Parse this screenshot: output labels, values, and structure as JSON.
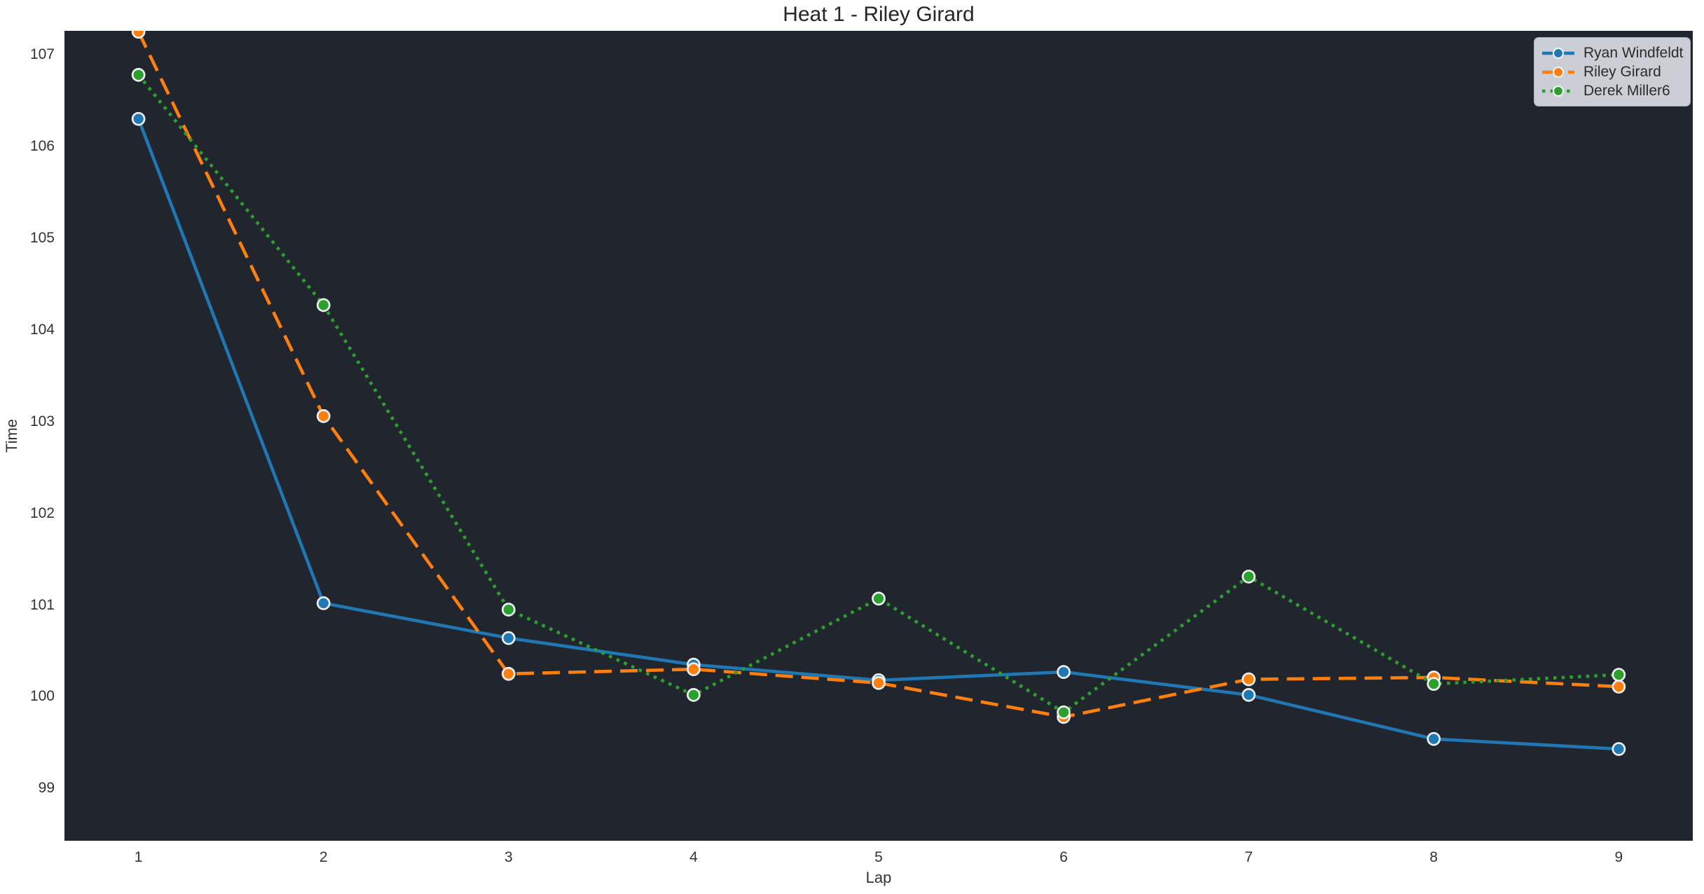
{
  "title": "Heat 1 - Riley Girard",
  "chart_data": {
    "type": "line",
    "title": "Heat 1 - Riley Girard",
    "xlabel": "Lap",
    "ylabel": "Time",
    "x": [
      1,
      2,
      3,
      4,
      5,
      6,
      7,
      8,
      9
    ],
    "series": [
      {
        "name": "Ryan Windfeldt",
        "color": "#1f77b4",
        "line_style": "solid",
        "marker": "circle",
        "values": [
          106.3,
          101.02,
          100.64,
          100.35,
          100.18,
          100.27,
          100.02,
          99.54,
          99.43
        ]
      },
      {
        "name": "Riley Girard",
        "color": "#ff7f0e",
        "line_style": "dashed",
        "marker": "circle",
        "values": [
          107.25,
          103.06,
          100.25,
          100.3,
          100.15,
          99.78,
          100.19,
          100.21,
          100.11
        ]
      },
      {
        "name": "Derek Miller6",
        "color": "#2ca02c",
        "line_style": "dotted",
        "marker": "circle",
        "values": [
          106.78,
          104.27,
          100.95,
          100.02,
          101.07,
          99.83,
          101.31,
          100.14,
          100.24
        ]
      }
    ],
    "xticks": [
      "1",
      "2",
      "3",
      "4",
      "5",
      "6",
      "7",
      "8",
      "9"
    ],
    "yticks": [
      "99",
      "100",
      "101",
      "102",
      "103",
      "104",
      "105",
      "106",
      "107"
    ],
    "xtick_values": [
      1,
      2,
      3,
      4,
      5,
      6,
      7,
      8,
      9
    ],
    "ytick_values": [
      99,
      100,
      101,
      102,
      103,
      104,
      105,
      106,
      107
    ],
    "xlim": [
      0.6,
      9.4
    ],
    "ylim": [
      98.43,
      107.26
    ],
    "grid": false,
    "legend_position": "upper right",
    "plot_bg": "#21262e",
    "figure_bg": "#ffffff",
    "marker_edge_color": "#eef0f2",
    "legend_bg": "#cbcfd5"
  }
}
